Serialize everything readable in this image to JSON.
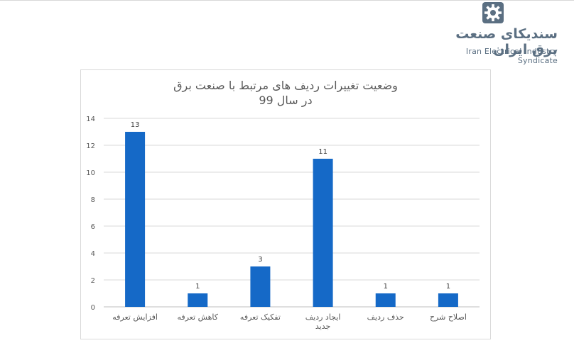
{
  "logo": {
    "name_fa": "سندیکای صنعت برق ایران",
    "name_en": "Iran Electrical Industry Syndicate",
    "icon": "gear-icon",
    "color": "#5b6f82"
  },
  "chart_data": {
    "type": "bar",
    "title": "وضعیت تغییرات ردیف های مرتبط با صنعت برق",
    "subtitle": "در سال 99",
    "categories": [
      "افزایش تعرفه",
      "کاهش تعرفه",
      "تفکیک تعرفه",
      "ایجاد ردیف جدید",
      "حذف ردیف",
      "اصلاح شرح"
    ],
    "series": [
      {
        "values": [
          13,
          1,
          3,
          11,
          1,
          1
        ],
        "color": "#1569c7"
      }
    ],
    "ylim": [
      0,
      14
    ],
    "yticks": [
      0,
      2,
      4,
      6,
      8,
      10,
      12,
      14
    ],
    "grid": true,
    "data_labels": true,
    "xlabel": "",
    "ylabel": ""
  }
}
